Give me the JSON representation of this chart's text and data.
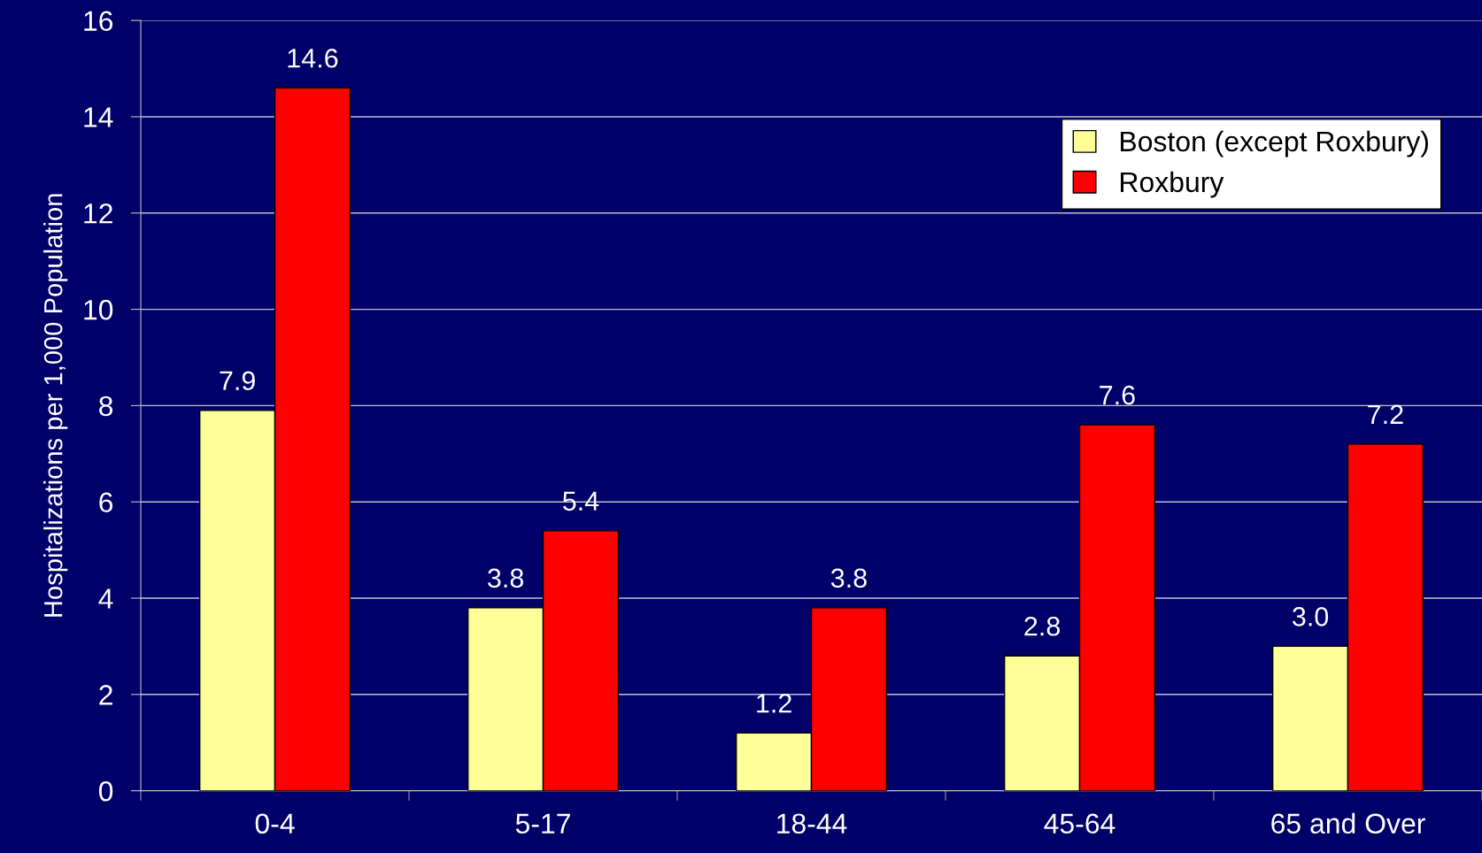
{
  "chart_data": {
    "type": "bar",
    "ylabel": "Hospitalizations per 1,000 Population",
    "categories": [
      "0-4",
      "5-17",
      "18-44",
      "45-64",
      "65 and Over"
    ],
    "series": [
      {
        "name": "Boston (except Roxbury)",
        "color": "#ffff99",
        "values": [
          7.9,
          3.8,
          1.2,
          2.8,
          3.0
        ],
        "value_labels": [
          "7.9",
          "3.8",
          "1.2",
          "2.8",
          "3.0"
        ]
      },
      {
        "name": "Roxbury",
        "color": "#ff0000",
        "values": [
          14.6,
          5.4,
          3.8,
          7.6,
          7.2
        ],
        "value_labels": [
          "14.6",
          "5.4",
          "3.8",
          "7.6",
          "7.2"
        ]
      }
    ],
    "ylim": [
      0,
      16
    ],
    "yticks": [
      0,
      2,
      4,
      6,
      8,
      10,
      12,
      14,
      16
    ],
    "grid": "y",
    "legend": "top right"
  }
}
